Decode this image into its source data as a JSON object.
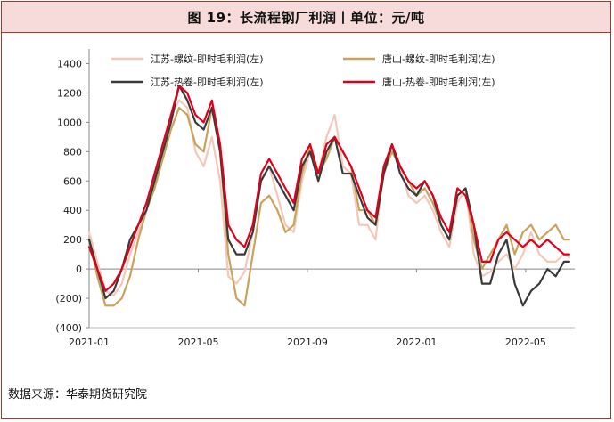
{
  "title": "图 19：长流程钢厂利润丨单位：元/吨",
  "source": "数据来源：华泰期货研究院",
  "chart_data": {
    "type": "line",
    "ylim": [
      -400,
      1500
    ],
    "y_ticks": [
      1400,
      1200,
      1000,
      800,
      600,
      400,
      200,
      0,
      -200,
      -400
    ],
    "y_tick_labels": [
      "1400",
      "1200",
      "1000",
      "800",
      "600",
      "400",
      "200",
      "0",
      "(200)",
      "(400)"
    ],
    "x_tick_labels": [
      "2021-01",
      "2021-05",
      "2021-09",
      "2022-01",
      "2022-05"
    ],
    "x_tick_months": [
      0,
      4,
      8,
      12,
      16
    ],
    "x_range_months": [
      0,
      17.8
    ],
    "legend_placement": "top",
    "series": [
      {
        "name": "江苏-螺纹-即时毛利润(左)",
        "color": "#f4c8b8",
        "width": 2.2,
        "x": [
          0,
          0.3,
          0.6,
          0.9,
          1.2,
          1.5,
          1.8,
          2.1,
          2.4,
          2.7,
          3.0,
          3.3,
          3.6,
          3.9,
          4.2,
          4.5,
          4.8,
          5.1,
          5.4,
          5.7,
          6.0,
          6.3,
          6.6,
          6.9,
          7.2,
          7.5,
          7.8,
          8.1,
          8.4,
          8.7,
          9.0,
          9.3,
          9.6,
          9.9,
          10.2,
          10.5,
          10.8,
          11.1,
          11.4,
          11.7,
          12.0,
          12.3,
          12.6,
          12.9,
          13.2,
          13.5,
          13.8,
          14.1,
          14.4,
          14.7,
          15.0,
          15.3,
          15.6,
          15.9,
          16.2,
          16.5,
          16.8,
          17.1,
          17.4,
          17.6
        ],
        "y": [
          250,
          50,
          -150,
          -180,
          -100,
          100,
          250,
          400,
          600,
          850,
          1050,
          1150,
          1100,
          800,
          700,
          900,
          600,
          -50,
          -100,
          -20,
          250,
          600,
          700,
          500,
          300,
          250,
          600,
          800,
          650,
          900,
          1050,
          700,
          650,
          300,
          300,
          200,
          700,
          800,
          700,
          500,
          450,
          500,
          400,
          250,
          150,
          450,
          550,
          100,
          -50,
          -20,
          50,
          100,
          0,
          100,
          250,
          100,
          50,
          50,
          100,
          80
        ]
      },
      {
        "name": "唐山-螺纹-即时毛利润(左)",
        "color": "#c9a35c",
        "width": 2.2,
        "x": [
          0,
          0.3,
          0.6,
          0.9,
          1.2,
          1.5,
          1.8,
          2.1,
          2.4,
          2.7,
          3.0,
          3.3,
          3.6,
          3.9,
          4.2,
          4.5,
          4.8,
          5.1,
          5.4,
          5.7,
          6.0,
          6.3,
          6.6,
          6.9,
          7.2,
          7.5,
          7.8,
          8.1,
          8.4,
          8.7,
          9.0,
          9.3,
          9.6,
          9.9,
          10.2,
          10.5,
          10.8,
          11.1,
          11.4,
          11.7,
          12.0,
          12.3,
          12.6,
          12.9,
          13.2,
          13.5,
          13.8,
          14.1,
          14.4,
          14.7,
          15.0,
          15.3,
          15.6,
          15.9,
          16.2,
          16.5,
          16.8,
          17.1,
          17.4,
          17.6
        ],
        "y": [
          200,
          -50,
          -250,
          -250,
          -200,
          -50,
          200,
          400,
          550,
          750,
          950,
          1100,
          1050,
          850,
          800,
          1100,
          800,
          100,
          -200,
          -250,
          100,
          450,
          500,
          400,
          250,
          300,
          650,
          850,
          650,
          750,
          900,
          800,
          700,
          400,
          400,
          300,
          650,
          800,
          700,
          600,
          500,
          550,
          450,
          300,
          200,
          500,
          550,
          200,
          0,
          100,
          200,
          300,
          100,
          250,
          300,
          200,
          250,
          300,
          200,
          200
        ]
      },
      {
        "name": "江苏-热卷-即时毛利润(左)",
        "color": "#3a3a3a",
        "width": 2.2,
        "x": [
          0,
          0.3,
          0.6,
          0.9,
          1.2,
          1.5,
          1.8,
          2.1,
          2.4,
          2.7,
          3.0,
          3.3,
          3.6,
          3.9,
          4.2,
          4.5,
          4.8,
          5.1,
          5.4,
          5.7,
          6.0,
          6.3,
          6.6,
          6.9,
          7.2,
          7.5,
          7.8,
          8.1,
          8.4,
          8.7,
          9.0,
          9.3,
          9.6,
          9.9,
          10.2,
          10.5,
          10.8,
          11.1,
          11.4,
          11.7,
          12.0,
          12.3,
          12.6,
          12.9,
          13.2,
          13.5,
          13.8,
          14.1,
          14.4,
          14.7,
          15.0,
          15.3,
          15.6,
          15.9,
          16.2,
          16.5,
          16.8,
          17.1,
          17.4,
          17.6
        ],
        "y": [
          200,
          0,
          -200,
          -150,
          0,
          200,
          300,
          400,
          600,
          800,
          1000,
          1250,
          1150,
          1000,
          950,
          1100,
          800,
          200,
          100,
          100,
          250,
          600,
          700,
          600,
          500,
          400,
          700,
          800,
          600,
          800,
          900,
          650,
          650,
          500,
          350,
          300,
          650,
          850,
          650,
          550,
          500,
          600,
          500,
          300,
          200,
          500,
          550,
          300,
          -100,
          -100,
          100,
          200,
          -100,
          -250,
          -150,
          -100,
          0,
          -50,
          50,
          50
        ]
      },
      {
        "name": "唐山-热卷-即时毛利润(左)",
        "color": "#e0001c",
        "width": 2.2,
        "x": [
          0,
          0.3,
          0.6,
          0.9,
          1.2,
          1.5,
          1.8,
          2.1,
          2.4,
          2.7,
          3.0,
          3.3,
          3.6,
          3.9,
          4.2,
          4.5,
          4.8,
          5.1,
          5.4,
          5.7,
          6.0,
          6.3,
          6.6,
          6.9,
          7.2,
          7.5,
          7.8,
          8.1,
          8.4,
          8.7,
          9.0,
          9.3,
          9.6,
          9.9,
          10.2,
          10.5,
          10.8,
          11.1,
          11.4,
          11.7,
          12.0,
          12.3,
          12.6,
          12.9,
          13.2,
          13.5,
          13.8,
          14.1,
          14.4,
          14.7,
          15.0,
          15.3,
          15.6,
          15.9,
          16.2,
          16.5,
          16.8,
          17.1,
          17.4,
          17.6
        ],
        "y": [
          150,
          0,
          -150,
          -100,
          0,
          150,
          300,
          450,
          650,
          850,
          1050,
          1250,
          1200,
          1050,
          1000,
          1150,
          850,
          300,
          200,
          150,
          300,
          650,
          750,
          650,
          550,
          450,
          750,
          850,
          650,
          850,
          900,
          800,
          700,
          550,
          400,
          350,
          700,
          850,
          700,
          600,
          550,
          600,
          500,
          350,
          250,
          550,
          500,
          300,
          50,
          50,
          200,
          250,
          200,
          150,
          200,
          150,
          200,
          150,
          100,
          100
        ]
      }
    ]
  }
}
